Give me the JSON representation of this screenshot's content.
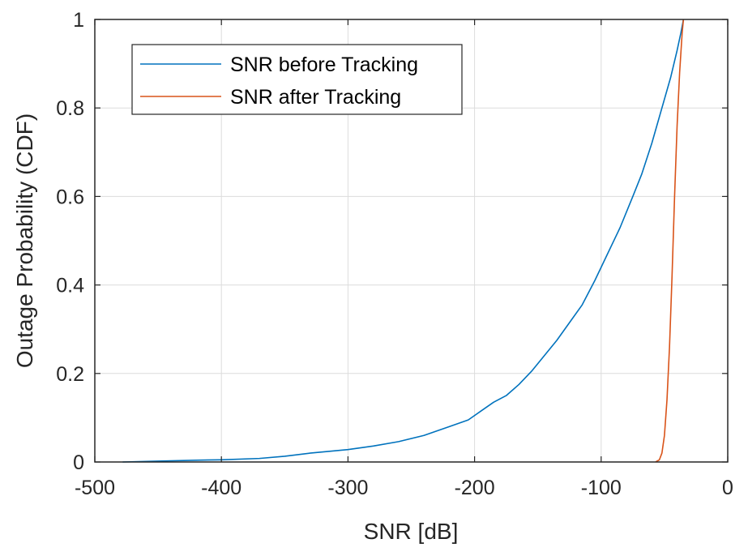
{
  "chart_data": {
    "type": "line",
    "title": "",
    "xlabel": "SNR [dB]",
    "ylabel": "Outage Probability (CDF)",
    "xlim": [
      -500,
      0
    ],
    "ylim": [
      0,
      1
    ],
    "xticks": [
      -500,
      -400,
      -300,
      -200,
      -100,
      0
    ],
    "xtick_labels": [
      "-500",
      "-400",
      "-300",
      "-200",
      "-100",
      "0"
    ],
    "yticks": [
      0,
      0.2,
      0.4,
      0.6,
      0.8,
      1
    ],
    "ytick_labels": [
      "0",
      "0.2",
      "0.4",
      "0.6",
      "0.8",
      "1"
    ],
    "grid": true,
    "legend_position": "top-left",
    "series": [
      {
        "name": "SNR before Tracking",
        "color": "#0072BD",
        "x": [
          -478,
          -450,
          -420,
          -400,
          -370,
          -350,
          -330,
          -300,
          -280,
          -260,
          -240,
          -220,
          -205,
          -195,
          -185,
          -175,
          -165,
          -155,
          -145,
          -135,
          -125,
          -115,
          -105,
          -95,
          -85,
          -75,
          -68,
          -60,
          -52,
          -45,
          -40,
          -37,
          -35
        ],
        "y": [
          0.0,
          0.002,
          0.004,
          0.005,
          0.008,
          0.013,
          0.02,
          0.028,
          0.036,
          0.046,
          0.06,
          0.08,
          0.095,
          0.115,
          0.135,
          0.15,
          0.175,
          0.205,
          0.24,
          0.275,
          0.315,
          0.355,
          0.41,
          0.47,
          0.53,
          0.6,
          0.65,
          0.72,
          0.8,
          0.87,
          0.93,
          0.97,
          1.0
        ]
      },
      {
        "name": "SNR after Tracking",
        "color": "#D95319",
        "x": [
          -57,
          -54,
          -52,
          -50,
          -48,
          -46,
          -44,
          -42,
          -40,
          -38,
          -36,
          -35
        ],
        "y": [
          0.0,
          0.005,
          0.02,
          0.06,
          0.14,
          0.26,
          0.42,
          0.6,
          0.76,
          0.88,
          0.97,
          1.0
        ]
      }
    ]
  }
}
